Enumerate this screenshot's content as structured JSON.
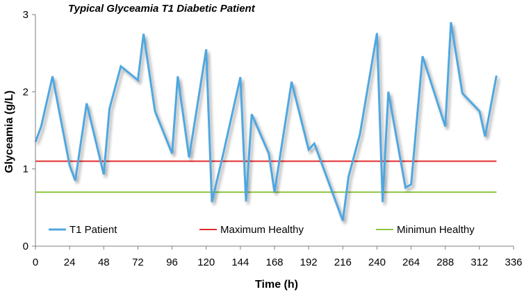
{
  "chart_data": {
    "type": "line",
    "title": "Typical Glyceamia T1 Diabetic Patient",
    "xlabel": "Time (h)",
    "ylabel": "Glyceamia (g/L)",
    "xlim": [
      0,
      336
    ],
    "ylim": [
      0,
      3
    ],
    "x_ticks": [
      0,
      24,
      48,
      72,
      96,
      120,
      144,
      168,
      192,
      216,
      240,
      264,
      288,
      312,
      336
    ],
    "x_tick_labels": [
      "0",
      "24",
      "48",
      "72",
      "96",
      "120",
      "144",
      "168",
      "192",
      "216",
      "240",
      "264",
      "288",
      "312",
      "336"
    ],
    "y_ticks": [
      0,
      1,
      2,
      3
    ],
    "y_tick_labels": [
      "0",
      "1",
      "2",
      "3"
    ],
    "legend_position": "bottom",
    "series": [
      {
        "name": "T1 Patient",
        "color": "#4FA7E0",
        "x": [
          0,
          4,
          12,
          24,
          28,
          36,
          48,
          52,
          60,
          72,
          76,
          84,
          96,
          100,
          108,
          120,
          124,
          132,
          144,
          148,
          152,
          164,
          168,
          180,
          192,
          196,
          216,
          220,
          228,
          240,
          244,
          248,
          260,
          264,
          272,
          288,
          292,
          300,
          312,
          316,
          324
        ],
        "y": [
          1.35,
          1.55,
          2.2,
          1.05,
          0.85,
          1.85,
          0.93,
          1.78,
          2.33,
          2.15,
          2.75,
          1.75,
          1.2,
          2.2,
          1.15,
          2.55,
          0.57,
          1.2,
          2.19,
          0.58,
          1.71,
          1.2,
          0.7,
          2.13,
          1.25,
          1.33,
          0.33,
          0.9,
          1.45,
          2.76,
          0.57,
          2.0,
          0.76,
          0.8,
          2.46,
          1.55,
          2.9,
          1.98,
          1.75,
          1.42,
          2.21
        ]
      },
      {
        "name": "Maximum Healthy",
        "color": "#E32B2B",
        "x": [
          0,
          324
        ],
        "y": [
          1.1,
          1.1
        ]
      },
      {
        "name": "Minimun Healthy",
        "color": "#8DC63F",
        "x": [
          0,
          324
        ],
        "y": [
          0.7,
          0.7
        ]
      }
    ]
  }
}
